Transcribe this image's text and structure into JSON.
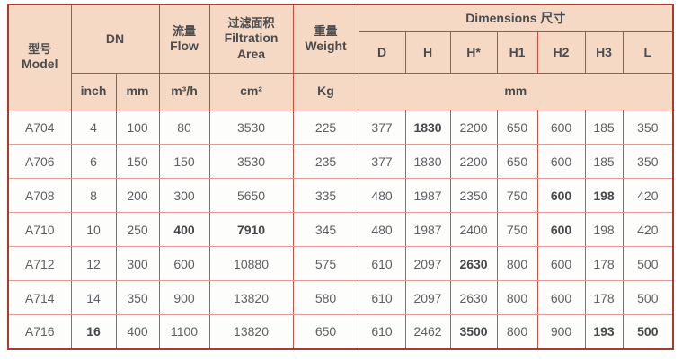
{
  "colors": {
    "header_bg": "#f5d9c4",
    "border_inner": "#c74a3c",
    "border_outer": "#a93b30",
    "data_grid_vertical": "#d05245",
    "data_grid_horizontal": "#e09a90",
    "header_text": "#4a4c4f",
    "cell_text": "#5d5f62",
    "row_bg": "#fdfdfc"
  },
  "chart_data": {
    "type": "table",
    "title": "",
    "header": {
      "model_zh": "型号",
      "model_en": "Model",
      "dn": "DN",
      "flow_zh": "流量",
      "flow_en": "Flow",
      "filtration_zh": "过滤面积",
      "filtration_en1": "Filtration",
      "filtration_en2": "Area",
      "weight_zh": "重量",
      "weight_en": "Weight",
      "dimensions": "Dimensions 尺寸",
      "dim_cols": [
        "D",
        "H",
        "H*",
        "H1",
        "H2",
        "H3",
        "L"
      ],
      "unit_inch": "inch",
      "unit_mm": "mm",
      "unit_flow": "m³/h",
      "unit_area": "cm²",
      "unit_weight": "Kg",
      "unit_dims": "mm"
    },
    "column_keys": [
      "model",
      "inch",
      "mm",
      "flow",
      "area",
      "weight",
      "d",
      "h",
      "h_star",
      "h1",
      "h2",
      "h3",
      "l"
    ],
    "rows": [
      {
        "cells": [
          "A704",
          "4",
          "100",
          "80",
          "3530",
          "225",
          "377",
          "1830",
          "2200",
          "650",
          "600",
          "185",
          "350"
        ],
        "bold": [
          7
        ]
      },
      {
        "cells": [
          "A706",
          "6",
          "150",
          "150",
          "3530",
          "235",
          "377",
          "1830",
          "2200",
          "650",
          "600",
          "185",
          "350"
        ],
        "bold": []
      },
      {
        "cells": [
          "A708",
          "8",
          "200",
          "300",
          "5650",
          "335",
          "480",
          "1987",
          "2350",
          "750",
          "600",
          "198",
          "420"
        ],
        "bold": [
          10,
          11
        ]
      },
      {
        "cells": [
          "A710",
          "10",
          "250",
          "400",
          "7910",
          "345",
          "480",
          "1987",
          "2400",
          "750",
          "600",
          "198",
          "420"
        ],
        "bold": [
          3,
          4,
          10
        ]
      },
      {
        "cells": [
          "A712",
          "12",
          "300",
          "600",
          "10880",
          "575",
          "610",
          "2097",
          "2630",
          "800",
          "600",
          "178",
          "500"
        ],
        "bold": [
          8
        ]
      },
      {
        "cells": [
          "A714",
          "14",
          "350",
          "900",
          "13820",
          "580",
          "610",
          "2097",
          "2630",
          "800",
          "600",
          "178",
          "500"
        ],
        "bold": []
      },
      {
        "cells": [
          "A716",
          "16",
          "400",
          "1100",
          "13820",
          "650",
          "610",
          "2462",
          "3500",
          "800",
          "900",
          "193",
          "500"
        ],
        "bold": [
          1,
          8,
          11,
          12
        ]
      }
    ]
  }
}
